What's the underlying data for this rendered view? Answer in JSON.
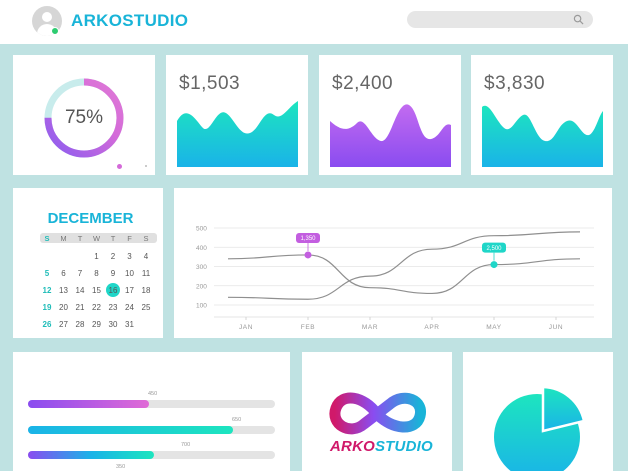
{
  "header": {
    "brand": "ARKOSTUDIO"
  },
  "ring": {
    "label": "75%",
    "percent": 75
  },
  "stats": [
    {
      "value": "$1,503"
    },
    {
      "value": "$2,400"
    },
    {
      "value": "$3,830"
    }
  ],
  "calendar": {
    "month": "DECEMBER",
    "weekdays": [
      "S",
      "M",
      "T",
      "W",
      "T",
      "F",
      "S"
    ],
    "weeks": [
      [
        "",
        "",
        "",
        "1",
        "2",
        "3",
        "4"
      ],
      [
        "5",
        "6",
        "7",
        "8",
        "9",
        "10",
        "11"
      ],
      [
        "12",
        "13",
        "14",
        "15",
        "16",
        "17",
        "18"
      ],
      [
        "19",
        "20",
        "21",
        "22",
        "23",
        "24",
        "25"
      ],
      [
        "26",
        "27",
        "28",
        "29",
        "30",
        "31",
        ""
      ]
    ],
    "selected_day": "16"
  },
  "line_chart": {
    "y_ticks": [
      "500",
      "400",
      "300",
      "200",
      "100"
    ],
    "x_labels": [
      "JAN",
      "FEB",
      "MAR",
      "APR",
      "MAY",
      "JUN"
    ],
    "callouts": [
      "1,350",
      "2,500"
    ]
  },
  "progress_bars": {
    "labels": [
      "450",
      "650",
      "700",
      "350"
    ],
    "values": [
      0.49,
      0.83,
      0.51,
      0.0
    ]
  },
  "logo": {
    "text_a": "ARKO",
    "text_b": "STUDIO"
  },
  "colors": {
    "accent": "#19b4d8",
    "teal": "#1fd6c8",
    "pink": "#d46ad9"
  },
  "chart_data": {
    "type": "line",
    "x": [
      "JAN",
      "FEB",
      "MAR",
      "APR",
      "MAY",
      "JUN"
    ],
    "ylim": [
      100,
      500
    ],
    "y_ticks": [
      100,
      200,
      300,
      400,
      500
    ],
    "series": [
      {
        "values": [
          340,
          360,
          190,
          160,
          310,
          340
        ]
      },
      {
        "values": [
          140,
          130,
          250,
          390,
          460,
          480
        ]
      }
    ],
    "annotations": [
      {
        "x": "FEB",
        "label": "1,350"
      },
      {
        "x": "MAY",
        "label": "2,500"
      }
    ],
    "grid": true
  }
}
